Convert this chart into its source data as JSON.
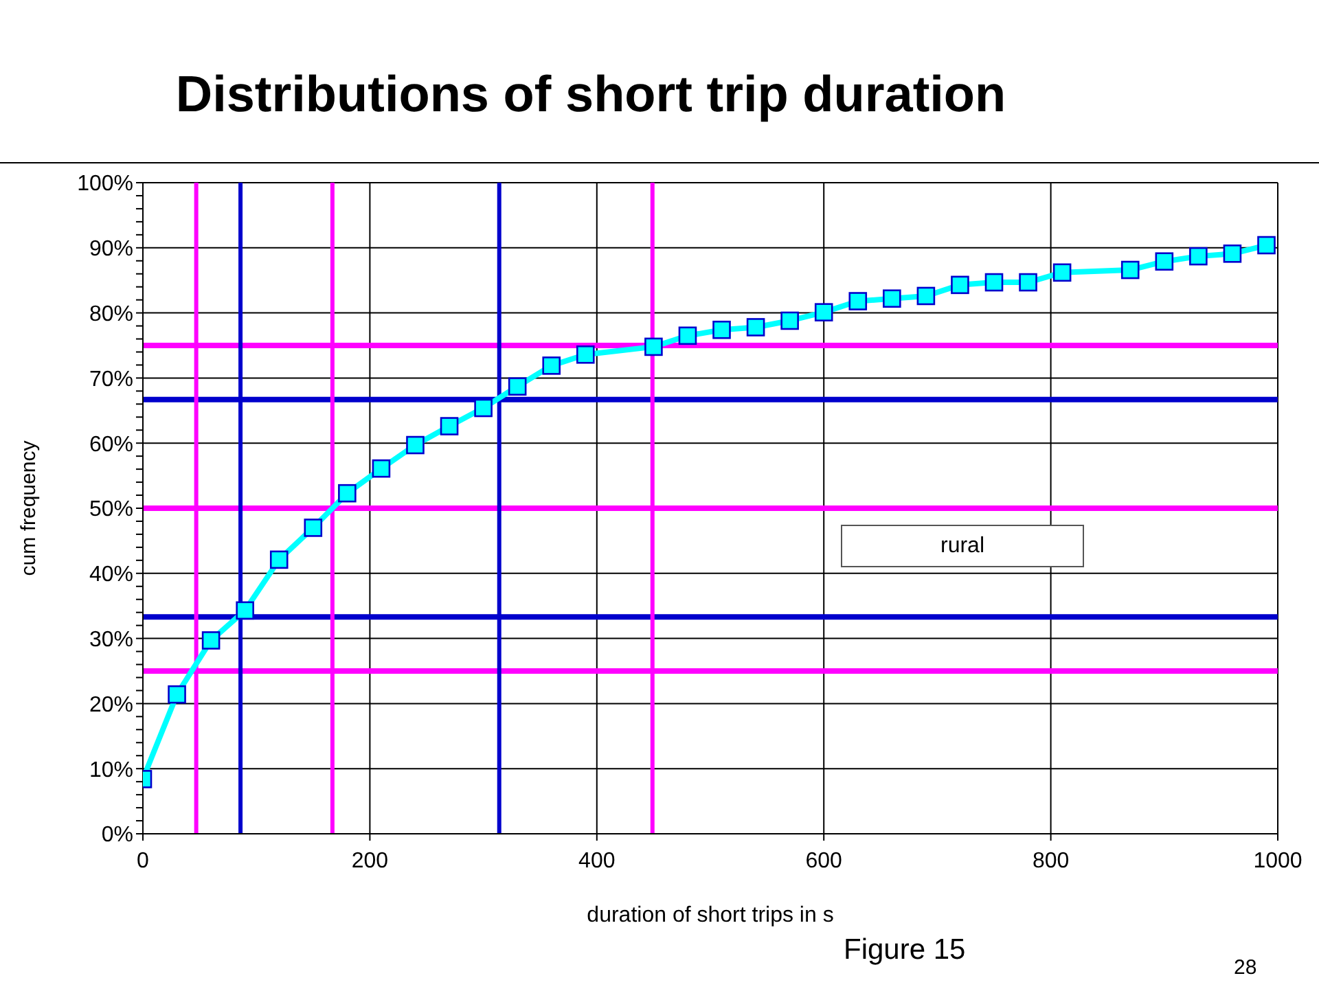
{
  "chart_data": {
    "type": "line",
    "title": "Distributions of short trip duration",
    "xlabel": "duration of short trips in s",
    "ylabel": "cum frequency",
    "annotations": [
      "rural",
      "Figure 15",
      "28"
    ],
    "x": [
      0,
      30,
      60,
      90,
      120,
      150,
      180,
      210,
      240,
      270,
      300,
      330,
      360,
      390,
      450,
      480,
      510,
      540,
      570,
      600,
      630,
      660,
      690,
      720,
      750,
      780,
      810,
      870,
      900,
      930,
      960,
      990
    ],
    "series": [
      {
        "color": "#00ffff",
        "values": [
          8.4,
          21.4,
          29.7,
          34.3,
          42.1,
          47.0,
          52.3,
          56.1,
          59.7,
          62.6,
          65.4,
          68.7,
          71.9,
          73.6,
          74.8,
          76.5,
          77.4,
          77.8,
          78.8,
          80.1,
          81.8,
          82.2,
          82.6,
          84.3,
          84.7,
          84.7,
          86.2,
          86.6,
          87.9,
          88.7,
          89.1,
          90.4
        ]
      }
    ],
    "xlim": [
      0,
      1000
    ],
    "ylim": [
      0,
      100
    ],
    "xticks": [
      0,
      200,
      400,
      600,
      800,
      1000
    ],
    "yticks": [
      {
        "value": 0,
        "label": "0%"
      },
      {
        "value": 2,
        "label": null
      },
      {
        "value": 4,
        "label": null
      },
      {
        "value": 6,
        "label": null
      },
      {
        "value": 8,
        "label": null
      },
      {
        "value": 10,
        "label": "10%"
      },
      {
        "value": 12,
        "label": null
      },
      {
        "value": 14,
        "label": null
      },
      {
        "value": 16,
        "label": null
      },
      {
        "value": 18,
        "label": null
      },
      {
        "value": 20,
        "label": "20%"
      },
      {
        "value": 22,
        "label": null
      },
      {
        "value": 24,
        "label": null
      },
      {
        "value": 26,
        "label": null
      },
      {
        "value": 28,
        "label": null
      },
      {
        "value": 30,
        "label": "30%"
      },
      {
        "value": 32,
        "label": null
      },
      {
        "value": 34,
        "label": null
      },
      {
        "value": 36,
        "label": null
      },
      {
        "value": 38,
        "label": null
      },
      {
        "value": 40,
        "label": "40%"
      },
      {
        "value": 42,
        "label": null
      },
      {
        "value": 44,
        "label": null
      },
      {
        "value": 46,
        "label": null
      },
      {
        "value": 48,
        "label": null
      },
      {
        "value": 50,
        "label": "50%"
      },
      {
        "value": 52,
        "label": null
      },
      {
        "value": 54,
        "label": null
      },
      {
        "value": 56,
        "label": null
      },
      {
        "value": 58,
        "label": null
      },
      {
        "value": 60,
        "label": "60%"
      },
      {
        "value": 62,
        "label": null
      },
      {
        "value": 64,
        "label": null
      },
      {
        "value": 66,
        "label": null
      },
      {
        "value": 68,
        "label": null
      },
      {
        "value": 70,
        "label": "70%"
      },
      {
        "value": 72,
        "label": null
      },
      {
        "value": 74,
        "label": null
      },
      {
        "value": 76,
        "label": null
      },
      {
        "value": 78,
        "label": null
      },
      {
        "value": 80,
        "label": "80%"
      },
      {
        "value": 82,
        "label": null
      },
      {
        "value": 84,
        "label": null
      },
      {
        "value": 86,
        "label": null
      },
      {
        "value": 88,
        "label": null
      },
      {
        "value": 90,
        "label": "90%"
      },
      {
        "value": 92,
        "label": null
      },
      {
        "value": 94,
        "label": null
      },
      {
        "value": 96,
        "label": null
      },
      {
        "value": 98,
        "label": null
      },
      {
        "value": 100,
        "label": "100%"
      }
    ],
    "grid": true,
    "marker": "square",
    "line_style": "solid",
    "ref_lines": [
      {
        "axis": "y",
        "value": 25,
        "color": "#ff00ff"
      },
      {
        "axis": "y",
        "value": 33.3,
        "color": "#0000cc"
      },
      {
        "axis": "y",
        "value": 50,
        "color": "#ff00ff"
      },
      {
        "axis": "y",
        "value": 66.7,
        "color": "#0000cc"
      },
      {
        "axis": "y",
        "value": 75,
        "color": "#ff00ff"
      },
      {
        "axis": "x",
        "value": 47,
        "color": "#ff00ff"
      },
      {
        "axis": "x",
        "value": 86,
        "color": "#0000cc"
      },
      {
        "axis": "x",
        "value": 167,
        "color": "#ff00ff"
      },
      {
        "axis": "x",
        "value": 314,
        "color": "#0000cc"
      },
      {
        "axis": "x",
        "value": 449,
        "color": "#ff00ff"
      }
    ]
  }
}
